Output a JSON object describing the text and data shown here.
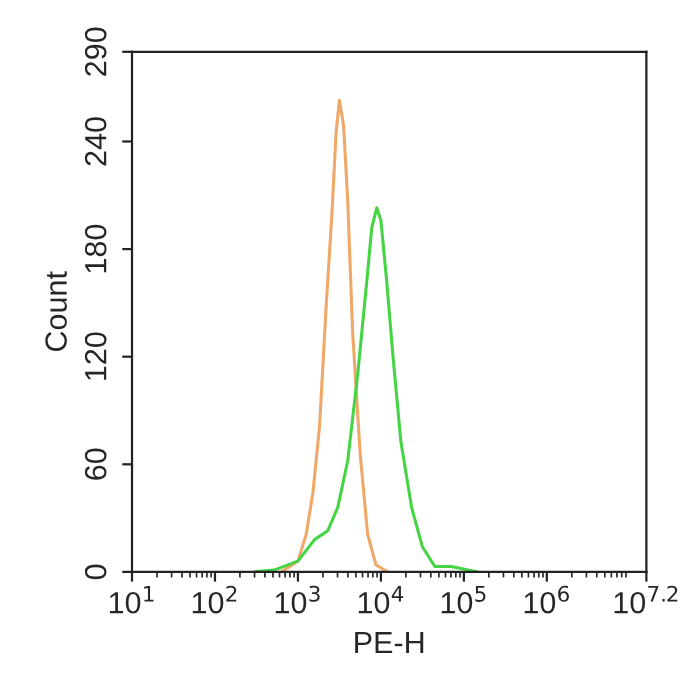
{
  "chart_data": {
    "type": "line",
    "xlabel": "PE-H",
    "ylabel": "Count",
    "log": "x",
    "grid": false,
    "legend": false,
    "marker": "none",
    "line_style": "solid",
    "xlim": [
      10,
      15848932
    ],
    "xticks": [
      {
        "value": 10,
        "label": "10$^{1}$"
      },
      {
        "value": 100,
        "label": "10$^{2}$"
      },
      {
        "value": 1000,
        "label": "10$^{3}$"
      },
      {
        "value": 10000,
        "label": "10$^{4}$"
      },
      {
        "value": 100000,
        "label": "10$^{5}$"
      },
      {
        "value": 1000000,
        "label": "10$^{6}$"
      },
      {
        "value": 15848932,
        "label": "10$^{7.2}$"
      }
    ],
    "ylim": [
      0,
      290
    ],
    "yticks": [
      0,
      60,
      120,
      180,
      240,
      290
    ],
    "series": [
      {
        "color": "#f0a868",
        "x": [
          631,
          1000,
          1259,
          1514,
          1820,
          2188,
          2570,
          2884,
          3162,
          3548,
          3981,
          4571,
          5623,
          6918,
          8710,
          12023
        ],
        "values": [
          0,
          6,
          21,
          44,
          81,
          148,
          200,
          245,
          263,
          249,
          207,
          133,
          66,
          21,
          4,
          0
        ]
      },
      {
        "color": "#44d444",
        "x": [
          295,
          513,
          1000,
          1585,
          2291,
          3020,
          3981,
          5248,
          6761,
          7762,
          8913,
          10000,
          11749,
          14125,
          17378,
          23442,
          31623,
          44668,
          70795,
          112202,
          147911
        ],
        "values": [
          0,
          1,
          6,
          18,
          23,
          36,
          62,
          110,
          162,
          192,
          203,
          196,
          162,
          118,
          73,
          36,
          14,
          3,
          3,
          1,
          0
        ]
      }
    ]
  }
}
